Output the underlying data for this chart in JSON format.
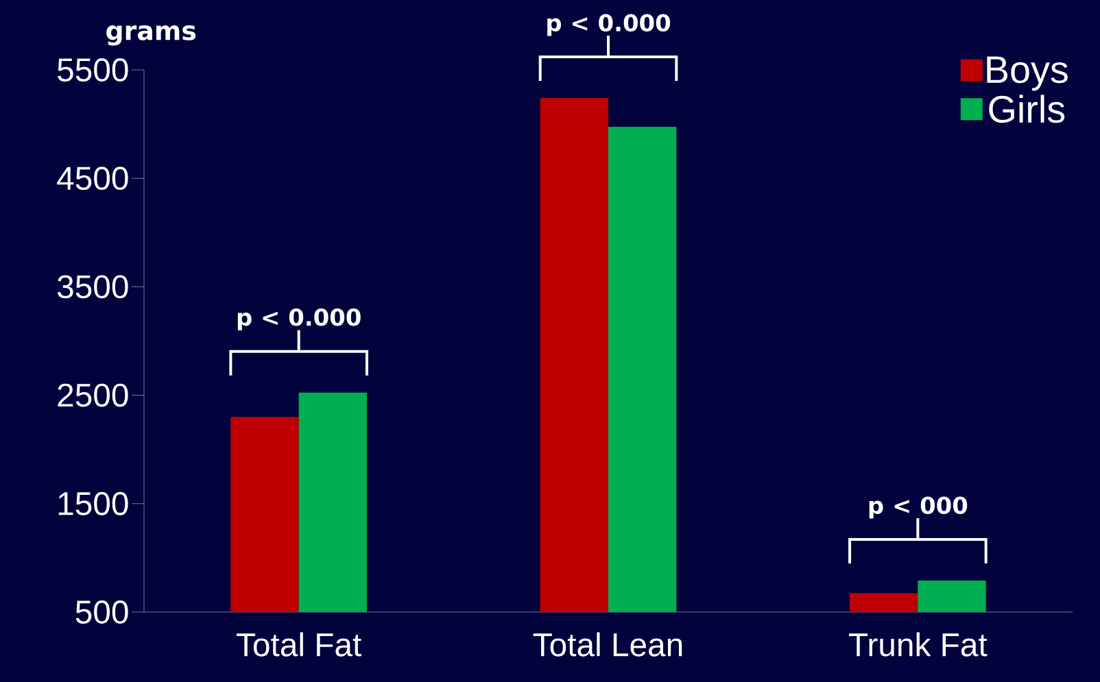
{
  "chart_data": {
    "type": "bar",
    "ylabel": "grams",
    "categories": [
      "Total Fat",
      "Total Lean",
      "Trunk Fat"
    ],
    "series": [
      {
        "name": "Boys",
        "color": "#c00000",
        "values": [
          2300,
          5240,
          675
        ]
      },
      {
        "name": "Girls",
        "color": "#00b050",
        "values": [
          2525,
          4975,
          790
        ]
      }
    ],
    "ylim": [
      500,
      5500
    ],
    "yticks": [
      500,
      1500,
      2500,
      3500,
      4500,
      5500
    ],
    "legend": "top right",
    "grid": false,
    "annotations": [
      "p < 0.000",
      "p < 0.000",
      "p < 000"
    ]
  }
}
